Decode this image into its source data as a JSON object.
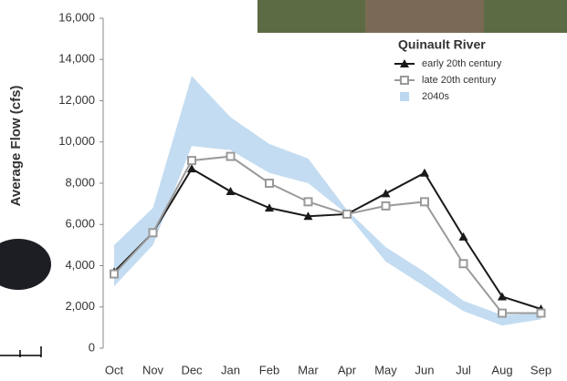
{
  "chart_data": {
    "type": "line",
    "y_label": "Average Flow (cfs)",
    "legend_title": "Quinault River",
    "legend_position": "upper right",
    "categories": [
      "Oct",
      "Nov",
      "Dec",
      "Jan",
      "Feb",
      "Mar",
      "Apr",
      "May",
      "Jun",
      "Jul",
      "Aug",
      "Sep"
    ],
    "series": [
      {
        "name": "early 20th century",
        "color": "#1a1a1a",
        "marker": "triangle",
        "values": [
          3700,
          5600,
          8700,
          7600,
          6800,
          6400,
          6500,
          7500,
          8500,
          5400,
          2500,
          1900
        ]
      },
      {
        "name": "late 20th century",
        "color": "#9a9a9a",
        "marker": "square",
        "values": [
          3600,
          5600,
          9100,
          9300,
          8000,
          7100,
          6500,
          6900,
          7100,
          4100,
          1700,
          1700
        ]
      },
      {
        "name": "2040s",
        "color": "#bcd8f0",
        "marker": "band",
        "low": [
          3000,
          5000,
          9800,
          9600,
          8500,
          8000,
          6500,
          4200,
          3000,
          1800,
          1100,
          1400
        ],
        "high": [
          5000,
          6800,
          13200,
          11200,
          9900,
          9200,
          6700,
          4900,
          3700,
          2300,
          1600,
          1700
        ]
      }
    ],
    "ylim": [
      0,
      16000
    ],
    "yticks": [
      0,
      {
        "value": 2000,
        "label": "2,000"
      },
      {
        "value": 4000,
        "label": "4,000"
      },
      {
        "value": 6000,
        "label": "6,000"
      },
      {
        "value": 8000,
        "label": "8,000"
      },
      {
        "value": 10000,
        "label": "10,000"
      },
      {
        "value": 12000,
        "label": "12,000"
      },
      {
        "value": 14000,
        "label": "14,000"
      },
      {
        "value": 16000,
        "label": "16,000"
      }
    ],
    "grid": false
  }
}
